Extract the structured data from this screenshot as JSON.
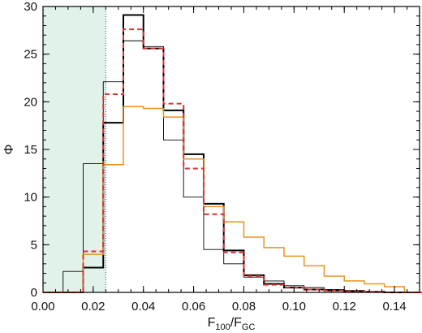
{
  "chart_data": {
    "type": "histogram",
    "xlabel": {
      "main": "F",
      "sub1": "100",
      "slash": "/F",
      "sub2": "GC"
    },
    "ylabel": "Φ",
    "xlim": [
      0.0,
      0.15
    ],
    "ylim": [
      0,
      30
    ],
    "x_ticks": [
      "0.00",
      "0.02",
      "0.04",
      "0.06",
      "0.08",
      "0.10",
      "0.12",
      "0.14"
    ],
    "y_ticks": [
      "0",
      "5",
      "10",
      "15",
      "20",
      "25",
      "30"
    ],
    "shaded_region": {
      "x0": 0.0,
      "x1": 0.025,
      "color": "#e1f2ea"
    },
    "vline": {
      "x": 0.025,
      "style": "dotted"
    },
    "bin_edges": [
      0.0,
      0.008,
      0.016,
      0.024,
      0.032,
      0.04,
      0.048,
      0.056,
      0.064,
      0.072,
      0.08,
      0.088,
      0.096,
      0.104,
      0.112,
      0.12,
      0.128,
      0.136,
      0.144,
      0.152
    ],
    "series": [
      {
        "color": "#000000",
        "width": 0.9,
        "dash": "none",
        "values": [
          0,
          2.2,
          13.5,
          22.1,
          26.4,
          25.8,
          16.0,
          10.0,
          4.5,
          3.0,
          1.6,
          1.2,
          0.7,
          0.5,
          0.3,
          0.2,
          0.1,
          0.05,
          0
        ]
      },
      {
        "color": "#000000",
        "width": 2.0,
        "dash": "none",
        "values": [
          0,
          0,
          2.6,
          17.8,
          29.1,
          25.6,
          19.1,
          14.5,
          9.3,
          4.4,
          1.8,
          0.9,
          0.5,
          0.3,
          0.2,
          0.1,
          0.05,
          0,
          0
        ]
      },
      {
        "color": "#e8941f",
        "width": 1.5,
        "dash": "none",
        "values": [
          0,
          0,
          4.0,
          13.4,
          19.5,
          19.3,
          18.4,
          14.0,
          9.0,
          7.4,
          5.8,
          4.7,
          3.8,
          2.8,
          1.7,
          1.2,
          0.9,
          0.6,
          0
        ]
      },
      {
        "color": "#e03030",
        "width": 2.0,
        "dash": "6,4",
        "values": [
          0,
          0,
          4.3,
          20.8,
          27.6,
          25.6,
          19.8,
          13.0,
          8.2,
          4.2,
          1.7,
          0.8,
          0.5,
          0.3,
          0.2,
          0.1,
          0.05,
          0,
          0
        ]
      }
    ]
  }
}
